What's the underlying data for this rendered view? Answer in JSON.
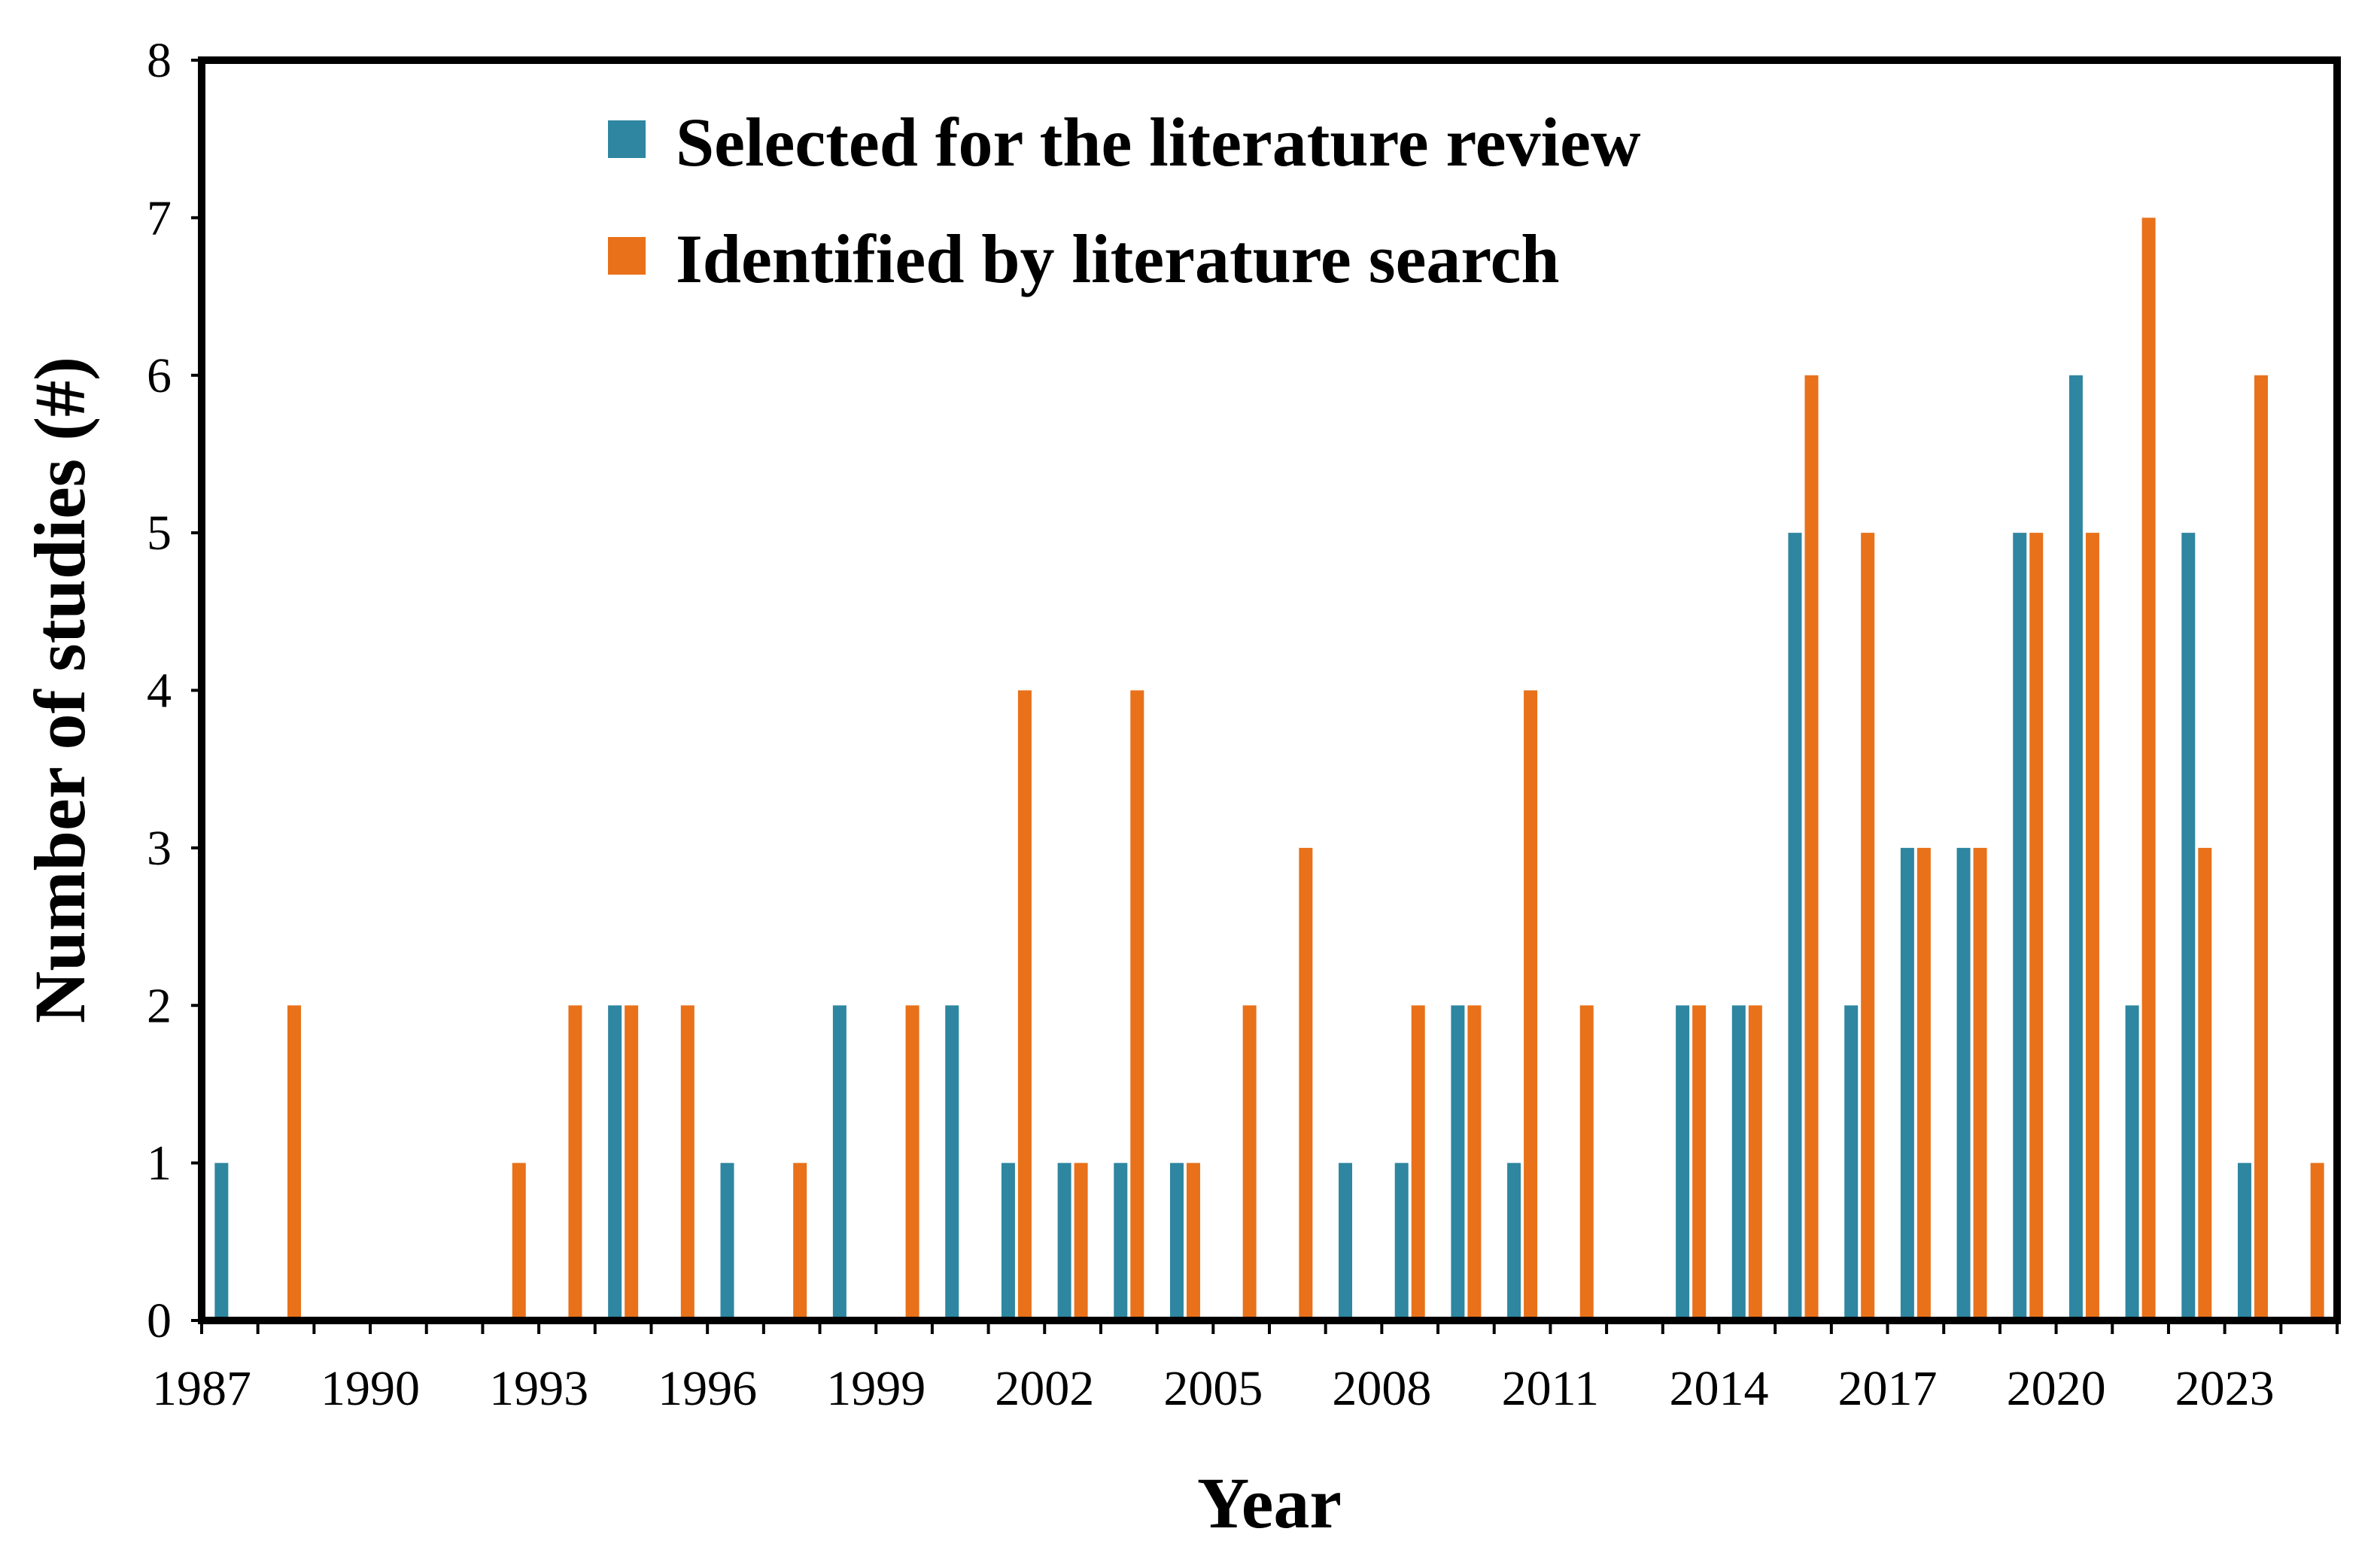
{
  "chart_data": {
    "type": "bar",
    "xlabel": "Year",
    "ylabel": "Number of studies (#)",
    "ylim": [
      0,
      8
    ],
    "yticks": [
      0,
      1,
      2,
      3,
      4,
      5,
      6,
      7,
      8
    ],
    "grid": false,
    "legend_position": "top-center",
    "categories": [
      1987,
      1988,
      1989,
      1990,
      1991,
      1992,
      1993,
      1994,
      1995,
      1996,
      1997,
      1998,
      1999,
      2000,
      2001,
      2002,
      2003,
      2004,
      2005,
      2006,
      2007,
      2008,
      2009,
      2010,
      2011,
      2012,
      2013,
      2014,
      2015,
      2016,
      2017,
      2018,
      2019,
      2020,
      2021,
      2022,
      2023,
      2024
    ],
    "tick_labels": [
      "1987",
      "1990",
      "1993",
      "1996",
      "1999",
      "2002",
      "2005",
      "2008",
      "2011",
      "2014",
      "2017",
      "2020",
      "2023"
    ],
    "series": [
      {
        "name": "Selected for the literature review",
        "color": "#2e86a0",
        "values": [
          1,
          0,
          0,
          0,
          0,
          0,
          0,
          2,
          0,
          1,
          0,
          2,
          0,
          2,
          1,
          1,
          1,
          1,
          0,
          0,
          1,
          1,
          2,
          1,
          0,
          0,
          2,
          2,
          5,
          2,
          3,
          3,
          5,
          6,
          2,
          5,
          1,
          0
        ]
      },
      {
        "name": "Identified by literature search",
        "color": "#e8711a",
        "values": [
          0,
          2,
          0,
          0,
          0,
          1,
          2,
          2,
          2,
          0,
          1,
          0,
          2,
          0,
          4,
          1,
          4,
          1,
          2,
          3,
          0,
          2,
          2,
          4,
          2,
          0,
          2,
          2,
          6,
          5,
          3,
          3,
          5,
          5,
          7,
          3,
          6,
          1
        ]
      }
    ]
  }
}
